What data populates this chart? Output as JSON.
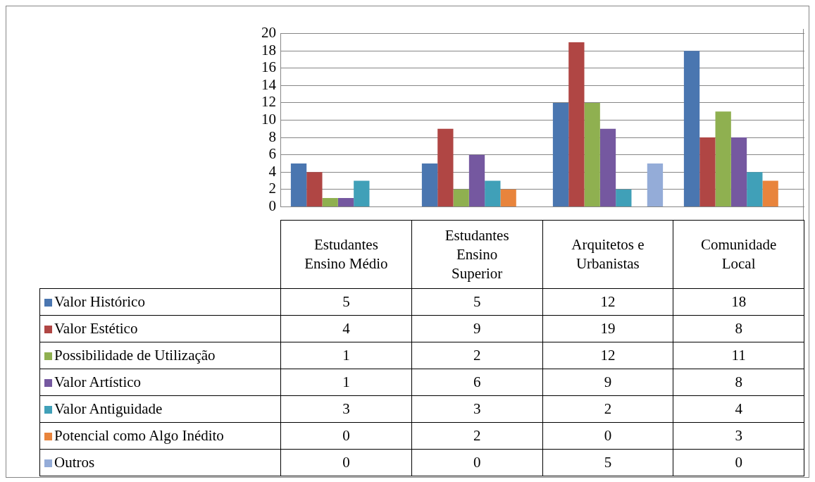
{
  "chart_data": {
    "type": "bar",
    "categories": [
      "Estudantes Ensino Médio",
      "Estudantes Ensino Superior",
      "Arquitetos e Urbanistas",
      "Comunidade Local"
    ],
    "series": [
      {
        "name": "Valor Histórico",
        "color": "#4a76b0",
        "values": [
          5,
          5,
          12,
          18
        ]
      },
      {
        "name": "Valor Estético",
        "color": "#b04644",
        "values": [
          4,
          9,
          19,
          8
        ]
      },
      {
        "name": "Possibilidade de Utilização",
        "color": "#8fb050",
        "values": [
          1,
          2,
          12,
          11
        ]
      },
      {
        "name": "Valor Artístico",
        "color": "#7558a0",
        "values": [
          1,
          6,
          9,
          8
        ]
      },
      {
        "name": "Valor Antiguidade",
        "color": "#40a0b8",
        "values": [
          3,
          3,
          2,
          4
        ]
      },
      {
        "name": "Potencial como Algo Inédito",
        "color": "#e8843c",
        "values": [
          0,
          2,
          0,
          3
        ]
      },
      {
        "name": "Outros",
        "color": "#94acd8",
        "values": [
          0,
          0,
          5,
          0
        ]
      }
    ],
    "ylim": [
      0,
      20
    ],
    "yticks": [
      0,
      2,
      4,
      6,
      8,
      10,
      12,
      14,
      16,
      18,
      20
    ],
    "grid": "y",
    "legend": "bottom",
    "data_labels": true
  }
}
